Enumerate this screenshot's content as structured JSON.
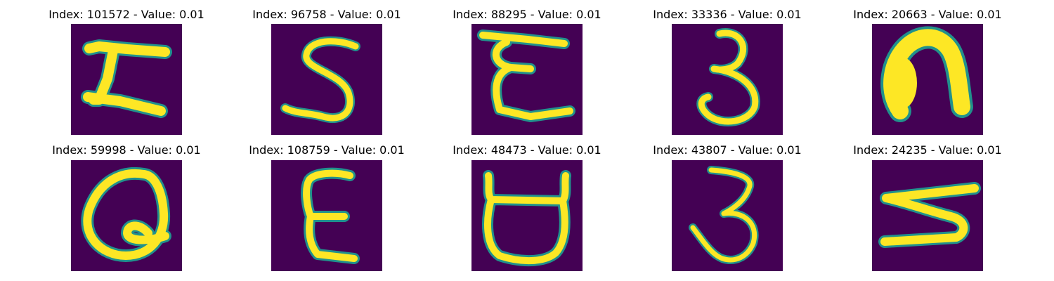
{
  "figure": {
    "background": "#ffffff",
    "colormap": "viridis",
    "image_background_color": "#440154",
    "stroke_color": "#fde725"
  },
  "chart_data": [
    {
      "type": "image",
      "title": "Index: 101572 - Value: 0.01",
      "glyph": "H-like, rotated",
      "axis": "off"
    },
    {
      "type": "image",
      "title": "Index: 96758 - Value: 0.01",
      "glyph": "S",
      "axis": "off"
    },
    {
      "type": "image",
      "title": "Index: 88295 - Value: 0.01",
      "glyph": "E-like, rotated",
      "axis": "off"
    },
    {
      "type": "image",
      "title": "Index: 33336 - Value: 0.01",
      "glyph": "3",
      "axis": "off"
    },
    {
      "type": "image",
      "title": "Index: 20663 - Value: 0.01",
      "glyph": "n",
      "axis": "off"
    },
    {
      "type": "image",
      "title": "Index: 59998 - Value: 0.01",
      "glyph": "Q",
      "axis": "off"
    },
    {
      "type": "image",
      "title": "Index: 108759 - Value: 0.01",
      "glyph": "E",
      "axis": "off"
    },
    {
      "type": "image",
      "title": "Index: 48473 - Value: 0.01",
      "glyph": "D, rotated",
      "axis": "off"
    },
    {
      "type": "image",
      "title": "Index: 43807 - Value: 0.01",
      "glyph": "3",
      "axis": "off"
    },
    {
      "type": "image",
      "title": "Index: 24235 - Value: 0.01",
      "glyph": "3, rotated",
      "axis": "off"
    }
  ]
}
